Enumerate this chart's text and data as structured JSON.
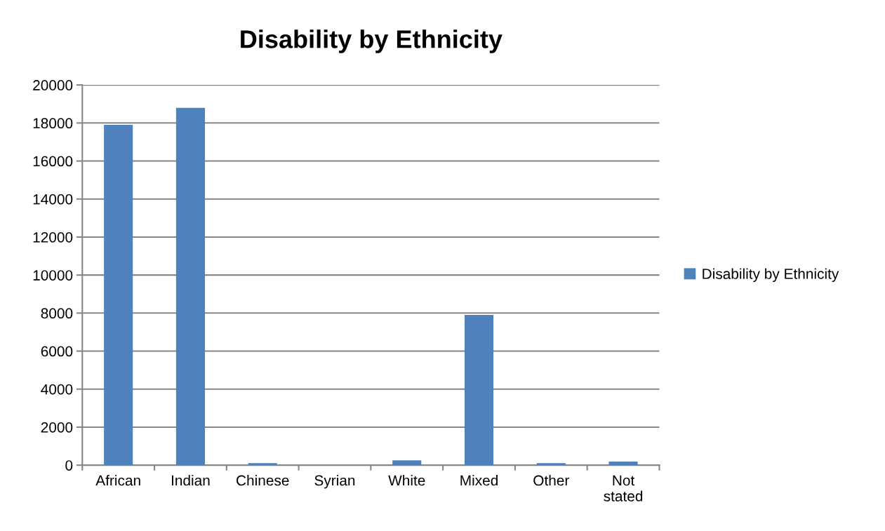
{
  "chart_data": {
    "type": "bar",
    "title": "Disability by Ethnicity",
    "categories": [
      "African",
      "Indian",
      "Chinese",
      "Syrian",
      "White",
      "Mixed",
      "Other",
      "Not\nstated"
    ],
    "series": [
      {
        "name": "Disability by Ethnicity",
        "color": "#4f81bd",
        "values": [
          17900,
          18800,
          110,
          0,
          250,
          7900,
          110,
          190
        ]
      }
    ],
    "ylim": [
      0,
      20000
    ],
    "yticks": [
      0,
      2000,
      4000,
      6000,
      8000,
      10000,
      12000,
      14000,
      16000,
      18000,
      20000
    ],
    "grid": "y",
    "legend": "right"
  }
}
